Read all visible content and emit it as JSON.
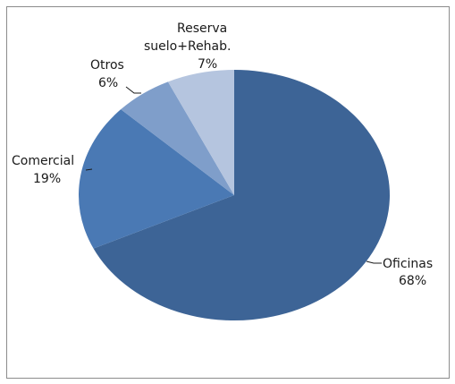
{
  "chart_data": {
    "type": "pie",
    "title": "",
    "slices": [
      {
        "label_lines": [
          "Oficinas"
        ],
        "value_label": "68%",
        "value": 68,
        "color": "#3D6496"
      },
      {
        "label_lines": [
          "Comercial"
        ],
        "value_label": "19%",
        "value": 19,
        "color": "#4A79B4"
      },
      {
        "label_lines": [
          "Otros"
        ],
        "value_label": "6%",
        "value": 6,
        "color": "#7F9ECA"
      },
      {
        "label_lines": [
          "Reserva",
          "suelo+Rehab."
        ],
        "value_label": "7%",
        "value": 7,
        "color": "#B5C5DF"
      }
    ],
    "start_angle_deg": 0,
    "direction": "clockwise",
    "legend": "none"
  }
}
